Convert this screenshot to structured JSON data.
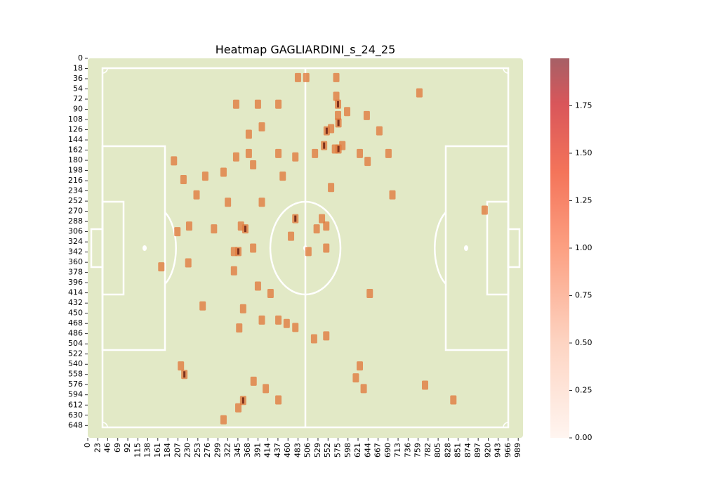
{
  "chart_data": {
    "type": "heatmap",
    "title": "Heatmap GAGLIARDINI_s_24_25",
    "xlabel": "",
    "ylabel": "",
    "xlim": [
      0,
      1000
    ],
    "ylim": [
      0,
      670
    ],
    "x_ticks": [
      0,
      23,
      46,
      69,
      92,
      115,
      138,
      161,
      184,
      207,
      230,
      253,
      276,
      299,
      322,
      345,
      368,
      391,
      414,
      437,
      460,
      483,
      506,
      529,
      552,
      575,
      598,
      621,
      644,
      667,
      690,
      713,
      736,
      759,
      782,
      805,
      828,
      851,
      874,
      897,
      920,
      943,
      966,
      989
    ],
    "y_ticks": [
      0,
      18,
      36,
      54,
      72,
      90,
      108,
      126,
      144,
      162,
      180,
      198,
      216,
      234,
      252,
      270,
      288,
      306,
      324,
      342,
      360,
      378,
      396,
      414,
      432,
      450,
      468,
      486,
      504,
      522,
      540,
      558,
      576,
      594,
      612,
      630,
      648
    ],
    "colorbar": {
      "min": 0,
      "max": 2,
      "ticks": [
        0.0,
        0.25,
        0.5,
        0.75,
        1.0,
        1.25,
        1.5,
        1.75
      ],
      "tick_labels": [
        "0.00",
        "0.25",
        "0.50",
        "0.75",
        "1.00",
        "1.25",
        "1.50",
        "1.75"
      ]
    },
    "pitch_color": "#e2e9c6",
    "line_color": "#ffffff",
    "cell_color": "#e07a3c",
    "peak_color": "#6b1f12",
    "points": [
      {
        "x": 483,
        "y": 34,
        "v": 1
      },
      {
        "x": 502,
        "y": 34,
        "v": 1
      },
      {
        "x": 571,
        "y": 34,
        "v": 1
      },
      {
        "x": 762,
        "y": 61,
        "v": 1
      },
      {
        "x": 571,
        "y": 67,
        "v": 1
      },
      {
        "x": 341,
        "y": 81,
        "v": 1
      },
      {
        "x": 391,
        "y": 81,
        "v": 1
      },
      {
        "x": 438,
        "y": 81,
        "v": 1
      },
      {
        "x": 575,
        "y": 81,
        "v": 2
      },
      {
        "x": 596,
        "y": 94,
        "v": 1
      },
      {
        "x": 641,
        "y": 101,
        "v": 1
      },
      {
        "x": 575,
        "y": 101,
        "v": 1
      },
      {
        "x": 576,
        "y": 114,
        "v": 2
      },
      {
        "x": 400,
        "y": 121,
        "v": 1
      },
      {
        "x": 559,
        "y": 124,
        "v": 1
      },
      {
        "x": 549,
        "y": 128,
        "v": 2
      },
      {
        "x": 670,
        "y": 128,
        "v": 1
      },
      {
        "x": 370,
        "y": 134,
        "v": 1
      },
      {
        "x": 543,
        "y": 154,
        "v": 2
      },
      {
        "x": 585,
        "y": 154,
        "v": 1
      },
      {
        "x": 568,
        "y": 160,
        "v": 1
      },
      {
        "x": 576,
        "y": 160,
        "v": 2
      },
      {
        "x": 522,
        "y": 168,
        "v": 1
      },
      {
        "x": 625,
        "y": 168,
        "v": 1
      },
      {
        "x": 691,
        "y": 168,
        "v": 1
      },
      {
        "x": 370,
        "y": 168,
        "v": 1
      },
      {
        "x": 438,
        "y": 168,
        "v": 1
      },
      {
        "x": 341,
        "y": 174,
        "v": 1
      },
      {
        "x": 477,
        "y": 174,
        "v": 1
      },
      {
        "x": 380,
        "y": 188,
        "v": 1
      },
      {
        "x": 643,
        "y": 182,
        "v": 1
      },
      {
        "x": 198,
        "y": 181,
        "v": 1
      },
      {
        "x": 312,
        "y": 201,
        "v": 1
      },
      {
        "x": 270,
        "y": 208,
        "v": 1
      },
      {
        "x": 448,
        "y": 208,
        "v": 1
      },
      {
        "x": 220,
        "y": 214,
        "v": 1
      },
      {
        "x": 559,
        "y": 228,
        "v": 1
      },
      {
        "x": 250,
        "y": 241,
        "v": 1
      },
      {
        "x": 700,
        "y": 241,
        "v": 1
      },
      {
        "x": 322,
        "y": 254,
        "v": 1
      },
      {
        "x": 400,
        "y": 254,
        "v": 1
      },
      {
        "x": 912,
        "y": 268,
        "v": 1
      },
      {
        "x": 477,
        "y": 283,
        "v": 2
      },
      {
        "x": 538,
        "y": 283,
        "v": 1
      },
      {
        "x": 233,
        "y": 296,
        "v": 1
      },
      {
        "x": 548,
        "y": 296,
        "v": 1
      },
      {
        "x": 352,
        "y": 296,
        "v": 1
      },
      {
        "x": 362,
        "y": 301,
        "v": 2
      },
      {
        "x": 526,
        "y": 301,
        "v": 1
      },
      {
        "x": 206,
        "y": 306,
        "v": 1
      },
      {
        "x": 290,
        "y": 301,
        "v": 1
      },
      {
        "x": 467,
        "y": 314,
        "v": 1
      },
      {
        "x": 380,
        "y": 335,
        "v": 1
      },
      {
        "x": 548,
        "y": 335,
        "v": 1
      },
      {
        "x": 336,
        "y": 341,
        "v": 1
      },
      {
        "x": 346,
        "y": 341,
        "v": 2
      },
      {
        "x": 507,
        "y": 341,
        "v": 1
      },
      {
        "x": 231,
        "y": 361,
        "v": 1
      },
      {
        "x": 169,
        "y": 368,
        "v": 1
      },
      {
        "x": 336,
        "y": 375,
        "v": 1
      },
      {
        "x": 391,
        "y": 402,
        "v": 1
      },
      {
        "x": 420,
        "y": 415,
        "v": 1
      },
      {
        "x": 648,
        "y": 415,
        "v": 1
      },
      {
        "x": 264,
        "y": 437,
        "v": 1
      },
      {
        "x": 357,
        "y": 442,
        "v": 1
      },
      {
        "x": 400,
        "y": 462,
        "v": 1
      },
      {
        "x": 438,
        "y": 462,
        "v": 1
      },
      {
        "x": 457,
        "y": 468,
        "v": 1
      },
      {
        "x": 477,
        "y": 475,
        "v": 1
      },
      {
        "x": 348,
        "y": 476,
        "v": 1
      },
      {
        "x": 548,
        "y": 490,
        "v": 1
      },
      {
        "x": 520,
        "y": 495,
        "v": 1
      },
      {
        "x": 214,
        "y": 543,
        "v": 1
      },
      {
        "x": 222,
        "y": 558,
        "v": 2
      },
      {
        "x": 625,
        "y": 543,
        "v": 1
      },
      {
        "x": 616,
        "y": 564,
        "v": 1
      },
      {
        "x": 381,
        "y": 570,
        "v": 1
      },
      {
        "x": 409,
        "y": 583,
        "v": 1
      },
      {
        "x": 634,
        "y": 583,
        "v": 1
      },
      {
        "x": 775,
        "y": 577,
        "v": 1
      },
      {
        "x": 438,
        "y": 603,
        "v": 1
      },
      {
        "x": 840,
        "y": 603,
        "v": 1
      },
      {
        "x": 357,
        "y": 604,
        "v": 2
      },
      {
        "x": 346,
        "y": 617,
        "v": 1
      },
      {
        "x": 312,
        "y": 638,
        "v": 1
      }
    ]
  }
}
